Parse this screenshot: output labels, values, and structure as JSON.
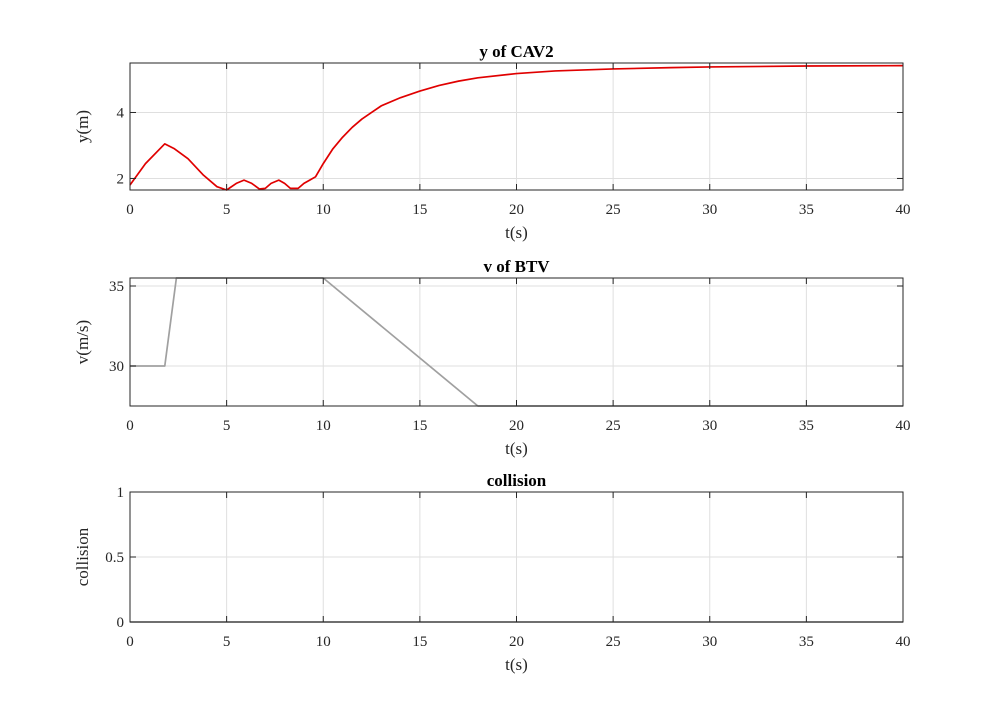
{
  "chart_data": [
    {
      "type": "line",
      "title": "y of CAV2",
      "xlabel": "t(s)",
      "ylabel": "y(m)",
      "xlim": [
        0,
        40
      ],
      "ylim": [
        1.65,
        5.5
      ],
      "xticks": [
        "0",
        "5",
        "10",
        "15",
        "20",
        "25",
        "30",
        "35",
        "40"
      ],
      "yticks": [
        "2",
        "4"
      ],
      "grid": true,
      "color": "#e00000",
      "series": [
        {
          "x": [
            0,
            0.8,
            1.8,
            2.3,
            3.0,
            3.8,
            4.5,
            5.0,
            5.5,
            5.9,
            6.3,
            6.7,
            7.0,
            7.3,
            7.7,
            8.0,
            8.3,
            8.7,
            9.0,
            9.3,
            9.6,
            10.0,
            10.5,
            11.0,
            11.5,
            12.0,
            12.5,
            13.0,
            14.0,
            15.0,
            16.0,
            17.0,
            18.0,
            20.0,
            22.0,
            25.0,
            28.0,
            30.0,
            35.0,
            40.0
          ],
          "y": [
            1.8,
            2.45,
            3.05,
            2.9,
            2.6,
            2.1,
            1.75,
            1.65,
            1.85,
            1.95,
            1.85,
            1.68,
            1.7,
            1.85,
            1.95,
            1.85,
            1.7,
            1.7,
            1.85,
            1.95,
            2.05,
            2.45,
            2.9,
            3.25,
            3.55,
            3.8,
            4.0,
            4.2,
            4.45,
            4.65,
            4.82,
            4.95,
            5.05,
            5.18,
            5.26,
            5.32,
            5.36,
            5.38,
            5.41,
            5.42
          ]
        }
      ]
    },
    {
      "type": "line",
      "title": "v of BTV",
      "xlabel": "t(s)",
      "ylabel": "v(m/s)",
      "xlim": [
        0,
        40
      ],
      "ylim": [
        27.5,
        35.5
      ],
      "xticks": [
        "0",
        "5",
        "10",
        "15",
        "20",
        "25",
        "30",
        "35",
        "40"
      ],
      "yticks": [
        "30",
        "35"
      ],
      "grid": true,
      "color": "#a0a0a0",
      "series": [
        {
          "x": [
            0,
            1.8,
            2.4,
            10.0,
            18.0,
            40.0
          ],
          "y": [
            30,
            30,
            35.5,
            35.5,
            27.5,
            27.5
          ]
        }
      ]
    },
    {
      "type": "line",
      "title": "collision",
      "xlabel": "t(s)",
      "ylabel": "collision",
      "xlim": [
        0,
        40
      ],
      "ylim": [
        0,
        1
      ],
      "xticks": [
        "0",
        "5",
        "10",
        "15",
        "20",
        "25",
        "30",
        "35",
        "40"
      ],
      "yticks": [
        "0",
        "0.5",
        "1"
      ],
      "grid": true,
      "color": "#a0a0a0",
      "series": [
        {
          "x": [
            0,
            40
          ],
          "y": [
            0,
            0
          ]
        }
      ]
    }
  ]
}
